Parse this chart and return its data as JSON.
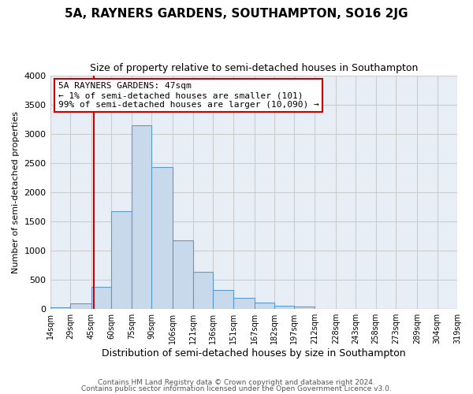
{
  "title": "5A, RAYNERS GARDENS, SOUTHAMPTON, SO16 2JG",
  "subtitle": "Size of property relative to semi-detached houses in Southampton",
  "xlabel": "Distribution of semi-detached houses by size in Southampton",
  "ylabel": "Number of semi-detached properties",
  "bin_edges": [
    14,
    29,
    45,
    60,
    75,
    90,
    106,
    121,
    136,
    151,
    167,
    182,
    197,
    212,
    228,
    243,
    258,
    273,
    289,
    304,
    319
  ],
  "bar_heights": [
    30,
    100,
    375,
    1680,
    3150,
    2430,
    1170,
    640,
    330,
    185,
    110,
    55,
    50,
    0,
    0,
    0,
    0,
    0,
    0,
    0
  ],
  "bar_color": "#c9d9ec",
  "bar_edgecolor": "#5b9bd5",
  "grid_color": "#cccccc",
  "bg_color": "#e8eef6",
  "red_line_x": 47,
  "annotation_line1": "5A RAYNERS GARDENS: 47sqm",
  "annotation_line2": "← 1% of semi-detached houses are smaller (101)",
  "annotation_line3": "99% of semi-detached houses are larger (10,090) →",
  "annotation_box_color": "#ffffff",
  "annotation_box_edgecolor": "#cc0000",
  "ylim": [
    0,
    4000
  ],
  "yticks": [
    0,
    500,
    1000,
    1500,
    2000,
    2500,
    3000,
    3500,
    4000
  ],
  "footer1": "Contains HM Land Registry data © Crown copyright and database right 2024.",
  "footer2": "Contains public sector information licensed under the Open Government Licence v3.0."
}
